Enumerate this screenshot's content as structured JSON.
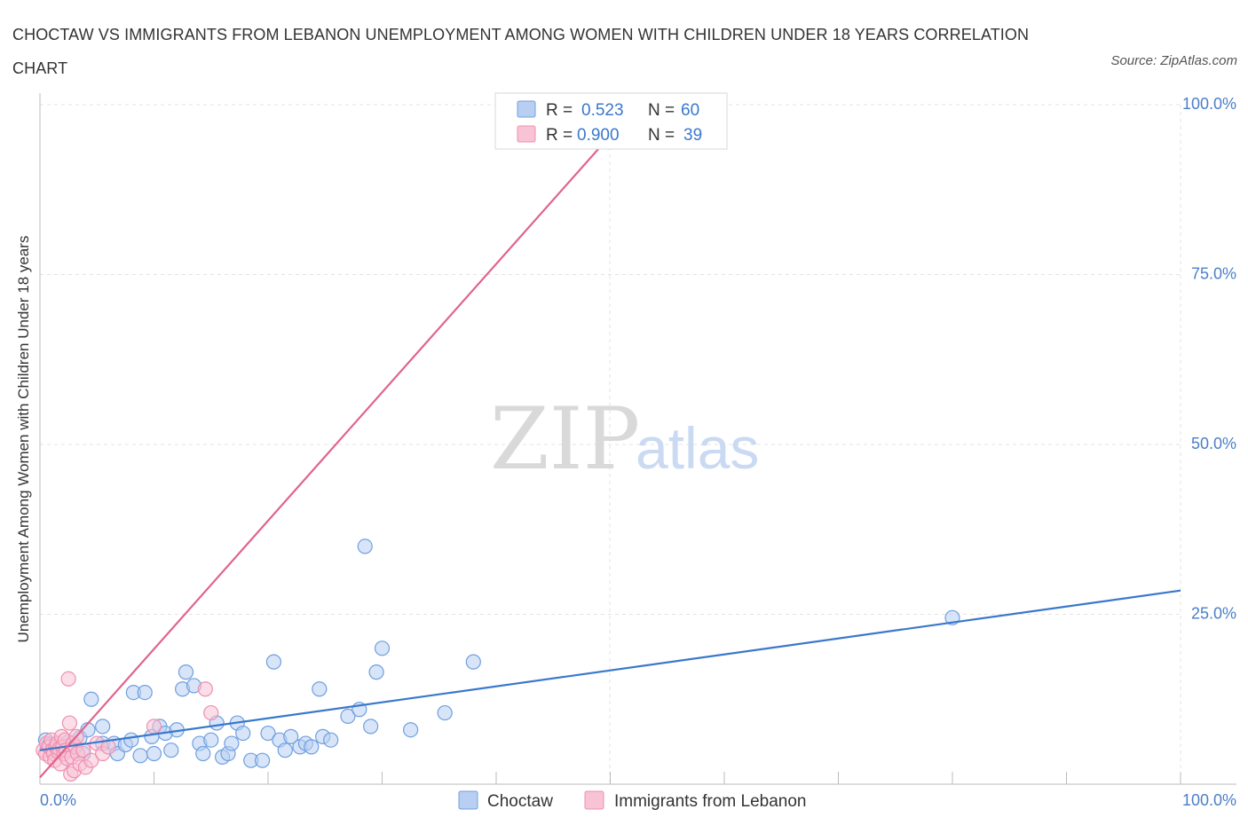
{
  "header": {
    "title": "CHOCTAW VS IMMIGRANTS FROM LEBANON UNEMPLOYMENT AMONG WOMEN WITH CHILDREN UNDER 18 YEARS CORRELATION CHART",
    "source": "Source: ZipAtlas.com"
  },
  "watermark": {
    "zip": "ZIP",
    "atlas": "atlas"
  },
  "chart_data": {
    "type": "scatter",
    "ylabel": "Unemployment Among Women with Children Under 18 years",
    "xlim": [
      0,
      100
    ],
    "ylim": [
      0,
      100
    ],
    "x_ticks": [
      "0.0%",
      "100.0%"
    ],
    "y_ticks": [
      {
        "value": 25,
        "label": "25.0%"
      },
      {
        "value": 50,
        "label": "50.0%"
      },
      {
        "value": 75,
        "label": "75.0%"
      },
      {
        "value": 100,
        "label": "100.0%"
      }
    ],
    "grid": true,
    "legend_position": "bottom-center",
    "stats_box_position": "top-center",
    "series": [
      {
        "name": "Choctaw",
        "color": "#6f9fe0",
        "fill": "#b8cff2",
        "line_color": "#3a78cc",
        "R_label": "R =",
        "R": "0.523",
        "N_label": "N =",
        "N": "60",
        "trend": {
          "x0": 0,
          "y0": 5.0,
          "x1": 100,
          "y1": 28.5
        },
        "points": [
          [
            0.5,
            6.5
          ],
          [
            0.8,
            5.8
          ],
          [
            1.5,
            5.2
          ],
          [
            2.0,
            4.9
          ],
          [
            2.5,
            6.2
          ],
          [
            3.0,
            5.5
          ],
          [
            3.5,
            6.8
          ],
          [
            3.8,
            4.5
          ],
          [
            4.2,
            8.0
          ],
          [
            4.5,
            12.5
          ],
          [
            5.5,
            6.0
          ],
          [
            5.5,
            8.5
          ],
          [
            6.5,
            6.0
          ],
          [
            6.8,
            4.5
          ],
          [
            7.5,
            5.8
          ],
          [
            8.0,
            6.5
          ],
          [
            8.2,
            13.5
          ],
          [
            8.8,
            4.2
          ],
          [
            9.2,
            13.5
          ],
          [
            9.8,
            7.0
          ],
          [
            10.0,
            4.5
          ],
          [
            10.5,
            8.5
          ],
          [
            11.0,
            7.5
          ],
          [
            11.5,
            5.0
          ],
          [
            12.0,
            8.0
          ],
          [
            12.5,
            14.0
          ],
          [
            12.8,
            16.5
          ],
          [
            13.5,
            14.5
          ],
          [
            14.0,
            6.0
          ],
          [
            14.3,
            4.5
          ],
          [
            15.0,
            6.5
          ],
          [
            15.5,
            9.0
          ],
          [
            16.0,
            4.0
          ],
          [
            16.5,
            4.5
          ],
          [
            16.8,
            6.0
          ],
          [
            17.3,
            9.0
          ],
          [
            17.8,
            7.5
          ],
          [
            18.5,
            3.5
          ],
          [
            19.5,
            3.5
          ],
          [
            20.0,
            7.5
          ],
          [
            20.5,
            18.0
          ],
          [
            21.0,
            6.5
          ],
          [
            21.5,
            5.0
          ],
          [
            22.0,
            7.0
          ],
          [
            22.8,
            5.5
          ],
          [
            23.3,
            6.0
          ],
          [
            23.8,
            5.5
          ],
          [
            24.5,
            14.0
          ],
          [
            24.8,
            7.0
          ],
          [
            25.5,
            6.5
          ],
          [
            27.0,
            10.0
          ],
          [
            28.0,
            11.0
          ],
          [
            28.5,
            35.0
          ],
          [
            29.0,
            8.5
          ],
          [
            29.5,
            16.5
          ],
          [
            30.0,
            20.0
          ],
          [
            32.5,
            8.0
          ],
          [
            35.5,
            10.5
          ],
          [
            38.0,
            18.0
          ],
          [
            80.0,
            24.5
          ]
        ]
      },
      {
        "name": "Immigrants from Lebanon",
        "color": "#ef8fb0",
        "fill": "#f7c3d5",
        "line_color": "#e0638d",
        "R_label": "R =",
        "R": "0.900",
        "N_label": "N =",
        "N": "39",
        "trend": {
          "x0": 0,
          "y0": 1.0,
          "x1": 49.5,
          "y1": 94.5
        },
        "points": [
          [
            0.3,
            5.0
          ],
          [
            0.5,
            4.5
          ],
          [
            0.6,
            6.0
          ],
          [
            0.8,
            5.5
          ],
          [
            0.9,
            4.0
          ],
          [
            1.0,
            6.5
          ],
          [
            1.1,
            5.0
          ],
          [
            1.2,
            4.5
          ],
          [
            1.3,
            3.5
          ],
          [
            1.4,
            5.5
          ],
          [
            1.5,
            6.0
          ],
          [
            1.6,
            4.8
          ],
          [
            1.7,
            5.2
          ],
          [
            1.8,
            3.0
          ],
          [
            1.9,
            7.0
          ],
          [
            2.0,
            5.5
          ],
          [
            2.1,
            4.5
          ],
          [
            2.2,
            6.5
          ],
          [
            2.3,
            5.0
          ],
          [
            2.4,
            3.8
          ],
          [
            2.5,
            15.5
          ],
          [
            2.6,
            9.0
          ],
          [
            2.7,
            1.5
          ],
          [
            2.8,
            4.0
          ],
          [
            2.9,
            6.0
          ],
          [
            3.0,
            2.0
          ],
          [
            3.1,
            5.5
          ],
          [
            3.2,
            7.0
          ],
          [
            3.3,
            4.5
          ],
          [
            3.5,
            3.0
          ],
          [
            3.8,
            5.0
          ],
          [
            4.0,
            2.5
          ],
          [
            4.5,
            3.5
          ],
          [
            5.0,
            6.0
          ],
          [
            5.5,
            4.5
          ],
          [
            6.0,
            5.5
          ],
          [
            10.0,
            8.5
          ],
          [
            14.5,
            14.0
          ],
          [
            15.0,
            10.5
          ]
        ]
      }
    ]
  }
}
